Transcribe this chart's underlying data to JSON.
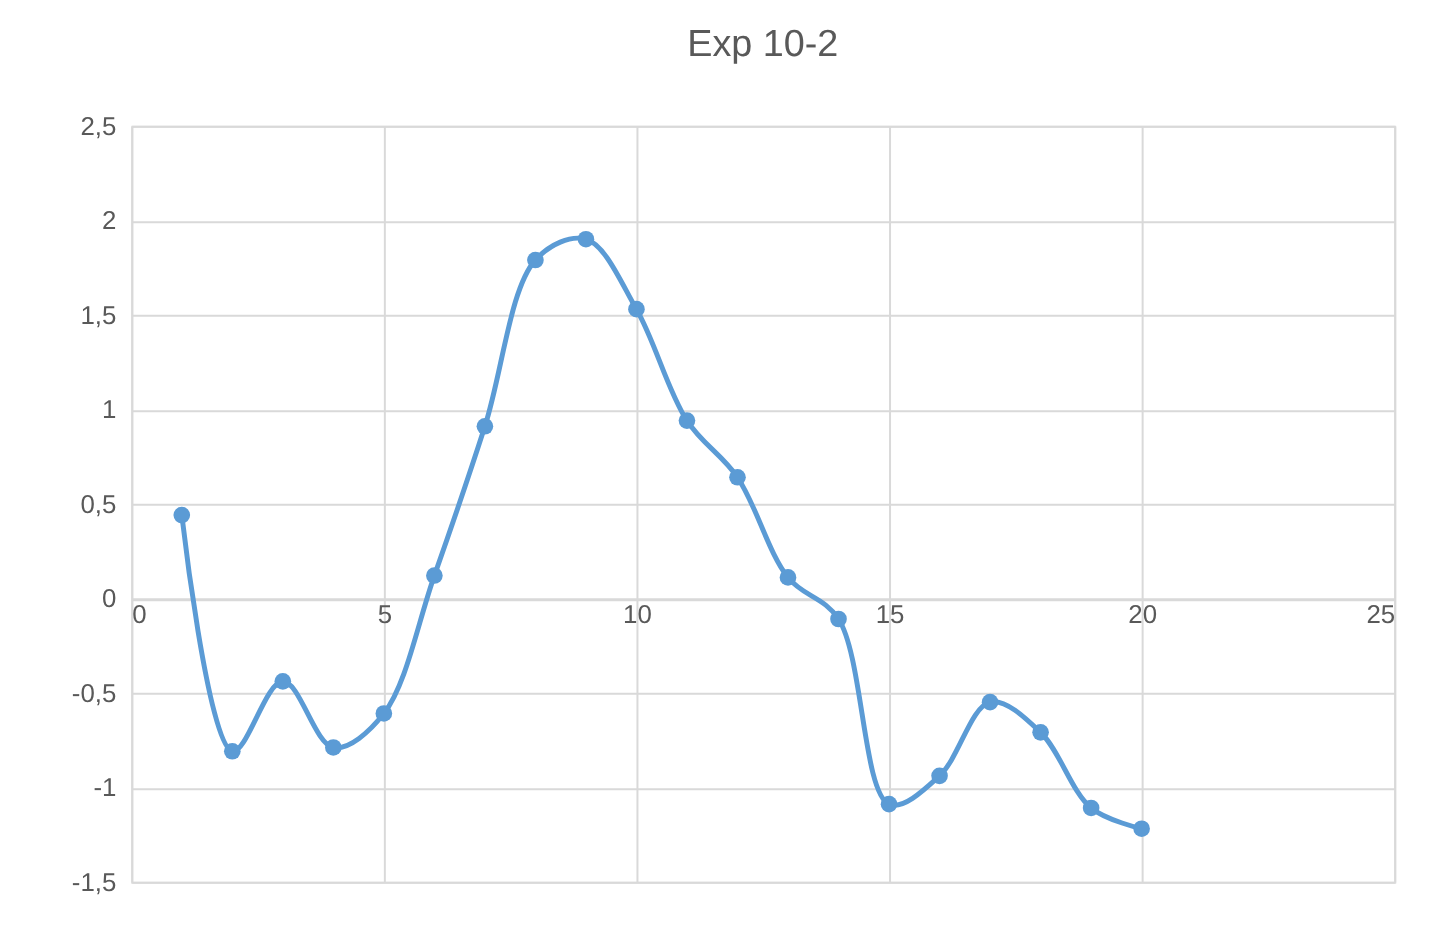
{
  "chart_data": {
    "type": "line",
    "title": "Exp 10-2",
    "x": [
      1,
      2,
      3,
      4,
      5,
      6,
      7,
      8,
      9,
      10,
      11,
      12,
      13,
      14,
      15,
      16,
      17,
      18,
      19,
      20
    ],
    "series": [
      {
        "color": "#5b9bd5",
        "values": [
          0.44,
          -0.81,
          -0.44,
          -0.79,
          -0.61,
          0.12,
          0.91,
          1.79,
          1.9,
          1.53,
          0.94,
          0.64,
          0.11,
          -0.11,
          -1.09,
          -0.94,
          -0.55,
          -0.71,
          -1.11,
          -1.22
        ]
      }
    ],
    "xlim": [
      0,
      25
    ],
    "xticks": [
      0,
      5,
      10,
      15,
      20,
      25
    ],
    "ylim": [
      -1.5,
      2.5
    ],
    "yticks": [
      {
        "value": -1.5,
        "label": "-1,5"
      },
      {
        "value": -1,
        "label": "-1"
      },
      {
        "value": -0.5,
        "label": "-0,5"
      },
      {
        "value": 0,
        "label": "0"
      },
      {
        "value": 0.5,
        "label": "0,5"
      },
      {
        "value": 1,
        "label": "1"
      },
      {
        "value": 1.5,
        "label": "1,5"
      },
      {
        "value": 2,
        "label": "2"
      },
      {
        "value": 2.5,
        "label": "2,5"
      }
    ],
    "grid": true,
    "marker": "circle",
    "line_style": "solid"
  }
}
